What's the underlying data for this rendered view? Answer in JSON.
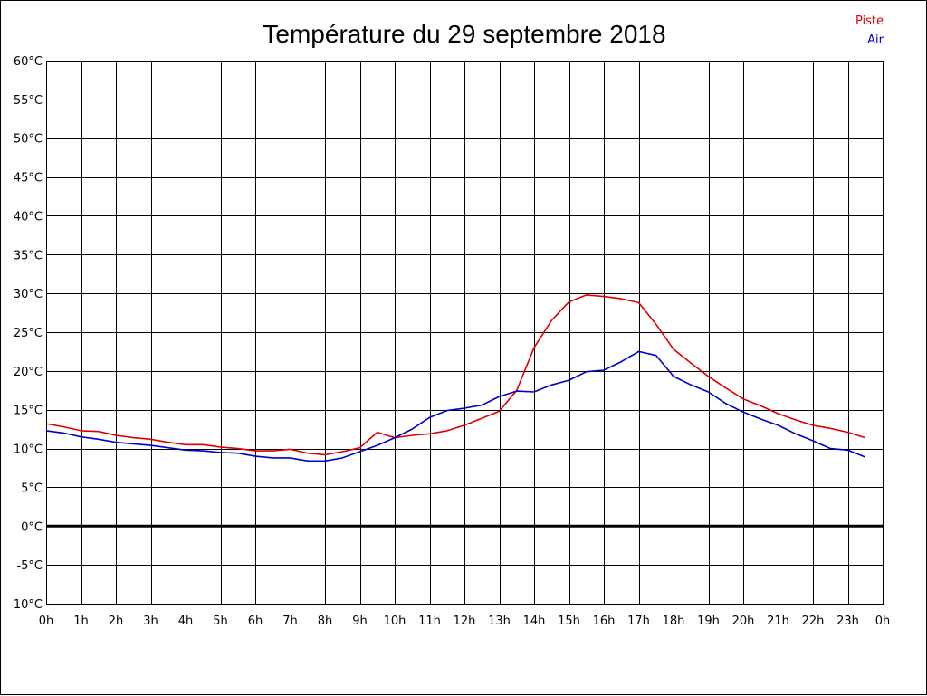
{
  "chart_data": {
    "type": "line",
    "title": "Température du 29 septembre 2018",
    "xlabel": "",
    "ylabel": "",
    "ylim": [
      -10,
      60
    ],
    "xlim": [
      0,
      24
    ],
    "y_ticks": [
      -10,
      -5,
      0,
      5,
      10,
      15,
      20,
      25,
      30,
      35,
      40,
      45,
      50,
      55,
      60
    ],
    "y_tick_labels": [
      "-10°C",
      "-5°C",
      "0°C",
      "5°C",
      "10°C",
      "15°C",
      "20°C",
      "25°C",
      "30°C",
      "35°C",
      "40°C",
      "45°C",
      "50°C",
      "55°C",
      "60°C"
    ],
    "x_ticks": [
      0,
      1,
      2,
      3,
      4,
      5,
      6,
      7,
      8,
      9,
      10,
      11,
      12,
      13,
      14,
      15,
      16,
      17,
      18,
      19,
      20,
      21,
      22,
      23,
      24
    ],
    "x_tick_labels": [
      "0h",
      "1h",
      "2h",
      "3h",
      "4h",
      "5h",
      "6h",
      "7h",
      "8h",
      "9h",
      "10h",
      "11h",
      "12h",
      "13h",
      "14h",
      "15h",
      "16h",
      "17h",
      "18h",
      "19h",
      "20h",
      "21h",
      "22h",
      "23h",
      "0h"
    ],
    "grid": true,
    "zero_line": true,
    "legend_position": "top-right",
    "series": [
      {
        "name": "Piste",
        "color": "#dd0000",
        "x": [
          0,
          0.5,
          1,
          1.5,
          2,
          2.5,
          3,
          3.5,
          4,
          4.5,
          5,
          5.5,
          6,
          6.5,
          7,
          7.5,
          8,
          8.5,
          9,
          9.5,
          10,
          10.5,
          11,
          11.5,
          12,
          12.5,
          13,
          13.5,
          14,
          14.5,
          15,
          15.5,
          16,
          16.5,
          17,
          17.5,
          18,
          18.5,
          19,
          19.5,
          20,
          20.5,
          21,
          21.5,
          22,
          22.5,
          23,
          23.5
        ],
        "values": [
          13.2,
          12.8,
          12.3,
          12.2,
          11.7,
          11.4,
          11.2,
          10.8,
          10.5,
          10.5,
          10.2,
          10.0,
          9.7,
          9.7,
          9.9,
          9.4,
          9.2,
          9.6,
          10.1,
          12.1,
          11.4,
          11.7,
          11.9,
          12.3,
          13.0,
          13.9,
          14.8,
          17.5,
          23.0,
          26.5,
          28.9,
          29.8,
          29.6,
          29.3,
          28.8,
          26.0,
          22.8,
          21.0,
          19.3,
          17.8,
          16.4,
          15.5,
          14.5,
          13.7,
          13.0,
          12.6,
          12.1,
          11.4
        ]
      },
      {
        "name": "Air",
        "color": "#0000cc",
        "x": [
          0,
          0.5,
          1,
          1.5,
          2,
          2.5,
          3,
          3.5,
          4,
          4.5,
          5,
          5.5,
          6,
          6.5,
          7,
          7.5,
          8,
          8.5,
          9,
          9.5,
          10,
          10.5,
          11,
          11.5,
          12,
          12.5,
          13,
          13.5,
          14,
          14.5,
          15,
          15.5,
          16,
          16.5,
          17,
          17.5,
          18,
          18.5,
          19,
          19.5,
          20,
          20.5,
          21,
          21.5,
          22,
          22.5,
          23,
          23.5
        ],
        "values": [
          12.3,
          12.0,
          11.5,
          11.2,
          10.8,
          10.6,
          10.4,
          10.1,
          9.8,
          9.7,
          9.5,
          9.4,
          9.0,
          8.8,
          8.8,
          8.4,
          8.4,
          8.8,
          9.6,
          10.4,
          11.4,
          12.5,
          14.0,
          14.9,
          15.2,
          15.6,
          16.7,
          17.4,
          17.3,
          18.2,
          18.8,
          19.9,
          20.1,
          21.2,
          22.5,
          22.0,
          19.3,
          18.2,
          17.3,
          15.8,
          14.7,
          13.8,
          13.0,
          11.9,
          11.0,
          10.0,
          9.8,
          8.9
        ]
      }
    ]
  }
}
